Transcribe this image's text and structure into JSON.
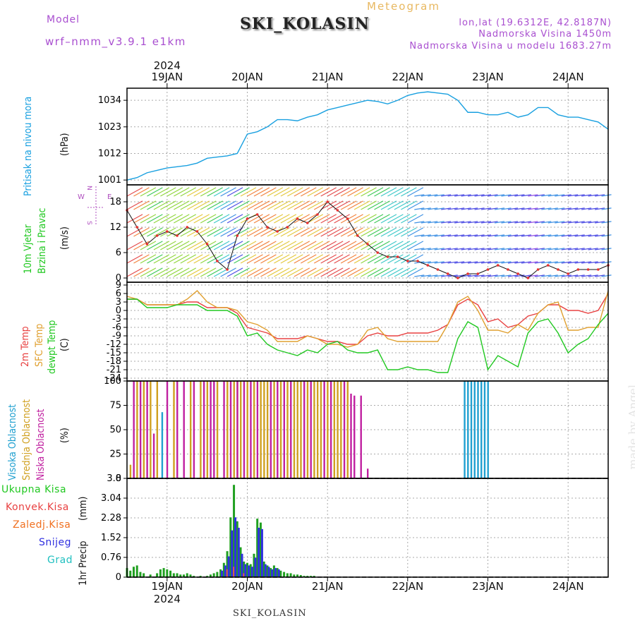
{
  "header": {
    "model_label": "Model",
    "model_name": "wrf–nmm_v3.9.1  e1km",
    "station": "SKI_KOLASIN",
    "subtitle": "Meteogram",
    "lonlat": "lon,lat (19.6312E, 42.8187N)",
    "altitude": "Nadmorska Visina 1450m",
    "model_altitude": "Nadmorska Visina u modelu 1683.27m"
  },
  "time_axis": {
    "year_top": "2024",
    "year_bottom": "2024",
    "days": [
      "19JAN",
      "20JAN",
      "21JAN",
      "22JAN",
      "23JAN",
      "24JAN"
    ],
    "day_positions": [
      0.0833,
      0.25,
      0.4167,
      0.5833,
      0.75,
      0.9167
    ]
  },
  "colors": {
    "pressure": "#19a0e0",
    "temp2m": "#e84040",
    "sfc_temp": "#e0a030",
    "dewpoint": "#20c820",
    "cloud_high": "#20a0d0",
    "cloud_mid": "#d0a020",
    "cloud_low": "#c020a0",
    "total_precip": "#20a020",
    "conv_precip": "#e03030",
    "frozen_precip": "#f07020",
    "snow": "#3030e0",
    "graupel": "#20c0c0",
    "wind_legend": "#b050c0"
  },
  "panels": {
    "pressure": {
      "label": "Pritisak na nivou mora",
      "unit": "(hPa)"
    },
    "wind": {
      "label1": "10m Vjetar",
      "label2": "Brzina i Pravac",
      "unit": "(m/s)",
      "compass_n": "N",
      "compass_s": "S",
      "compass_e": "E",
      "compass_w": "W"
    },
    "temp": {
      "label1": "2m Temp",
      "label2": "SFC Temp",
      "label3": "dewpt Temp",
      "unit": "(C)"
    },
    "cloud": {
      "label1": "Visoka Oblacnost",
      "label2": "Srednja Oblacnost",
      "label3": "Niska Oblacnost",
      "unit": "(%)"
    },
    "precip": {
      "label": "1hr Precip",
      "unit": "(mm)",
      "legend": [
        "Ukupna Kisa",
        "Konvek.Kisa",
        "Zaledj.Kisa",
        "Snijeg",
        "Grad"
      ]
    }
  },
  "signature": "made by Angel",
  "footer": "SKI_KOLASIN",
  "chart_data": [
    {
      "type": "line",
      "id": "pressure",
      "ylabel": "Pritisak na nivou mora (hPa)",
      "ylim": [
        999,
        1039
      ],
      "yticks": [
        1001,
        1012,
        1023,
        1034
      ],
      "grid": true,
      "series": [
        {
          "name": "Pritisak na nivou mora",
          "x": [
            0,
            3,
            6,
            9,
            12,
            15,
            18,
            21,
            24,
            27,
            30,
            33,
            36,
            39,
            42,
            45,
            48,
            51,
            54,
            57,
            60,
            63,
            66,
            69,
            72,
            75,
            78,
            81,
            84,
            87,
            90,
            93,
            96,
            99,
            102,
            105,
            108,
            111,
            114,
            117,
            120,
            123,
            126,
            129,
            132,
            135,
            138,
            141,
            144
          ],
          "values": [
            1001,
            1002,
            1004,
            1005,
            1006,
            1006.5,
            1007,
            1008,
            1010,
            1010.5,
            1011,
            1012,
            1020,
            1021,
            1023,
            1026,
            1026,
            1025.5,
            1027,
            1028,
            1030,
            1031,
            1032,
            1033,
            1034,
            1033.5,
            1032.5,
            1034,
            1036,
            1037,
            1037.5,
            1037,
            1036.5,
            1034,
            1029,
            1029,
            1028,
            1028,
            1029,
            1027,
            1028,
            1031,
            1031,
            1028,
            1027,
            1027,
            1026,
            1025,
            1022
          ]
        }
      ]
    },
    {
      "type": "line",
      "id": "wind",
      "ylabel": "10m Vjetar Brzina i Pravac (m/s)",
      "ylim": [
        -1,
        22
      ],
      "yticks": [
        0,
        6,
        12,
        18
      ],
      "grid": true,
      "series": [
        {
          "name": "Brzina",
          "x": [
            0,
            3,
            6,
            9,
            12,
            15,
            18,
            21,
            24,
            27,
            30,
            33,
            36,
            39,
            42,
            45,
            48,
            51,
            54,
            57,
            60,
            63,
            66,
            69,
            72,
            75,
            78,
            81,
            84,
            87,
            90,
            93,
            96,
            99,
            102,
            105,
            108,
            111,
            114,
            117,
            120,
            123,
            126,
            129,
            132,
            135,
            138,
            141,
            144
          ],
          "values": [
            16,
            12,
            8,
            10,
            11,
            10,
            12,
            11,
            8,
            4,
            2,
            10,
            14,
            15,
            12,
            11,
            12,
            14,
            13,
            15,
            18,
            16,
            14,
            10,
            8,
            6,
            5,
            5,
            4,
            4,
            3,
            2,
            1,
            0,
            1,
            1,
            2,
            3,
            2,
            1,
            0,
            2,
            3,
            2,
            1,
            2,
            2,
            2,
            3
          ]
        }
      ]
    },
    {
      "type": "line",
      "id": "temperature",
      "ylabel": "Temp (C)",
      "ylim": [
        -25,
        10
      ],
      "yticks": [
        9,
        6,
        3,
        0,
        -3,
        -6,
        -9,
        -12,
        -15,
        -18,
        -21,
        -24
      ],
      "grid": true,
      "series": [
        {
          "name": "2m Temp",
          "x": [
            0,
            3,
            6,
            9,
            12,
            15,
            18,
            21,
            24,
            27,
            30,
            33,
            36,
            39,
            42,
            45,
            48,
            51,
            54,
            57,
            60,
            63,
            66,
            69,
            72,
            75,
            78,
            81,
            84,
            87,
            90,
            93,
            96,
            99,
            102,
            105,
            108,
            111,
            114,
            117,
            120,
            123,
            126,
            129,
            132,
            135,
            138,
            141,
            144
          ],
          "values": [
            4,
            4,
            2,
            2,
            2,
            2,
            3,
            3,
            1,
            1,
            1,
            -1,
            -6,
            -7,
            -8,
            -10,
            -10,
            -10,
            -9,
            -10,
            -11,
            -11,
            -12,
            -12,
            -9,
            -8,
            -9,
            -9,
            -8,
            -8,
            -8,
            -7,
            -5,
            2,
            4,
            2,
            -4,
            -3,
            -6,
            -5,
            -2,
            -1,
            2,
            2,
            0,
            0,
            -1,
            0,
            6
          ]
        },
        {
          "name": "SFC Temp",
          "x": [
            0,
            3,
            6,
            9,
            12,
            15,
            18,
            21,
            24,
            27,
            30,
            33,
            36,
            39,
            42,
            45,
            48,
            51,
            54,
            57,
            60,
            63,
            66,
            69,
            72,
            75,
            78,
            81,
            84,
            87,
            90,
            93,
            96,
            99,
            102,
            105,
            108,
            111,
            114,
            117,
            120,
            123,
            126,
            129,
            132,
            135,
            138,
            141,
            144
          ],
          "values": [
            5,
            4,
            2,
            2,
            2,
            2,
            4,
            7,
            3,
            1,
            1,
            0,
            -4,
            -5,
            -7,
            -11,
            -11,
            -11,
            -9,
            -10,
            -12,
            -12,
            -13,
            -12,
            -7,
            -6,
            -10,
            -11,
            -11,
            -11,
            -11,
            -11,
            -5,
            3,
            5,
            0,
            -7,
            -7,
            -8,
            -5,
            -7,
            -1,
            2,
            3,
            -7,
            -7,
            -6,
            -6,
            7
          ]
        },
        {
          "name": "dewpt Temp",
          "x": [
            0,
            3,
            6,
            9,
            12,
            15,
            18,
            21,
            24,
            27,
            30,
            33,
            36,
            39,
            42,
            45,
            48,
            51,
            54,
            57,
            60,
            63,
            66,
            69,
            72,
            75,
            78,
            81,
            84,
            87,
            90,
            93,
            96,
            99,
            102,
            105,
            108,
            111,
            114,
            117,
            120,
            123,
            126,
            129,
            132,
            135,
            138,
            141,
            144
          ],
          "values": [
            4,
            4,
            1,
            1,
            1,
            2,
            2,
            2,
            0,
            0,
            0,
            -2,
            -9,
            -8,
            -12,
            -14,
            -15,
            -16,
            -14,
            -15,
            -12,
            -11,
            -14,
            -15,
            -15,
            -14,
            -21,
            -21,
            -20,
            -21,
            -21,
            -22,
            -22,
            -10,
            -4,
            -6,
            -21,
            -16,
            -18,
            -20,
            -8,
            -4,
            -3,
            -8,
            -15,
            -12,
            -10,
            -5,
            -1
          ]
        }
      ]
    },
    {
      "type": "bar",
      "id": "cloud",
      "ylabel": "Oblacnost (%)",
      "ylim": [
        0,
        100
      ],
      "yticks": [
        0,
        25,
        50,
        75,
        100
      ],
      "grid": true,
      "series": [
        {
          "name": "Visoka Oblacnost",
          "x": [
            10.5,
            101,
            102,
            103,
            104,
            105,
            106,
            107,
            108
          ],
          "values": [
            68,
            100,
            100,
            100,
            100,
            100,
            100,
            100,
            100
          ]
        },
        {
          "name": "Srednja Oblacnost",
          "x": [
            1,
            3,
            5,
            7,
            9,
            14,
            19,
            22,
            24,
            27,
            30,
            32,
            33,
            34,
            36,
            38,
            40,
            41,
            42,
            44,
            46,
            48,
            50,
            51,
            52,
            54,
            56,
            57,
            58,
            60,
            62,
            63,
            64,
            66
          ],
          "values": [
            14,
            100,
            100,
            100,
            100,
            100,
            100,
            100,
            100,
            100,
            100,
            100,
            100,
            100,
            100,
            100,
            100,
            100,
            100,
            100,
            100,
            100,
            100,
            100,
            100,
            100,
            100,
            100,
            100,
            100,
            100,
            100,
            100,
            100
          ]
        },
        {
          "name": "Niska Oblacnost",
          "x": [
            2,
            4,
            6,
            8,
            12,
            15,
            17,
            20,
            23,
            25,
            26,
            29,
            31,
            33,
            35,
            37,
            39,
            43,
            45,
            47,
            49,
            53,
            55,
            59,
            61,
            65,
            67,
            68,
            70,
            72
          ],
          "values": [
            100,
            100,
            100,
            46,
            100,
            100,
            100,
            100,
            100,
            100,
            100,
            100,
            100,
            100,
            100,
            100,
            100,
            100,
            100,
            100,
            100,
            100,
            100,
            100,
            100,
            100,
            87,
            85,
            85,
            10
          ]
        }
      ]
    },
    {
      "type": "bar",
      "id": "precip",
      "ylabel": "1hr Precip (mm)",
      "ylim": [
        0,
        3.8
      ],
      "yticks": [
        0,
        0.76,
        1.52,
        2.28,
        3.04,
        3.8
      ],
      "grid": true,
      "series": [
        {
          "name": "Ukupna Kisa",
          "x": [
            0,
            1,
            2,
            3,
            4,
            5,
            7,
            9,
            10,
            11,
            12,
            13,
            14,
            15,
            16,
            17,
            18,
            19,
            20,
            22,
            24,
            25,
            26,
            27,
            28,
            29,
            30,
            31,
            32,
            33,
            34,
            35,
            36,
            37,
            38,
            39,
            40,
            41,
            42,
            43,
            44,
            45,
            46,
            47,
            48,
            49,
            50,
            51,
            52,
            53,
            54,
            55,
            56
          ],
          "values": [
            0.35,
            0.25,
            0.4,
            0.45,
            0.2,
            0.15,
            0.1,
            0.15,
            0.3,
            0.35,
            0.3,
            0.25,
            0.15,
            0.15,
            0.1,
            0.1,
            0.15,
            0.1,
            0.05,
            0.05,
            0.05,
            0.1,
            0.15,
            0.2,
            0.3,
            0.55,
            1.0,
            2.3,
            3.55,
            2.15,
            1.15,
            0.6,
            0.55,
            0.5,
            0.9,
            2.25,
            2.1,
            0.6,
            0.45,
            0.35,
            0.45,
            0.35,
            0.25,
            0.2,
            0.15,
            0.15,
            0.1,
            0.1,
            0.08,
            0.05,
            0.05,
            0.05,
            0.05
          ]
        },
        {
          "name": "Konvek.Kisa",
          "x": [],
          "values": []
        },
        {
          "name": "Zaledj.Kisa",
          "x": [
            30,
            32,
            35
          ],
          "values": [
            0.3,
            0.4,
            0.15
          ]
        },
        {
          "name": "Snijeg",
          "x": [
            28,
            29,
            30,
            31,
            32,
            33,
            34,
            35,
            36,
            37,
            38,
            39,
            40,
            41,
            42,
            43,
            44,
            45
          ],
          "values": [
            0.25,
            0.45,
            0.8,
            1.8,
            2.3,
            1.9,
            0.9,
            0.5,
            0.45,
            0.4,
            0.75,
            1.9,
            1.85,
            0.5,
            0.4,
            0.3,
            0.35,
            0.3
          ]
        },
        {
          "name": "Grad",
          "x": [],
          "values": []
        }
      ]
    }
  ]
}
